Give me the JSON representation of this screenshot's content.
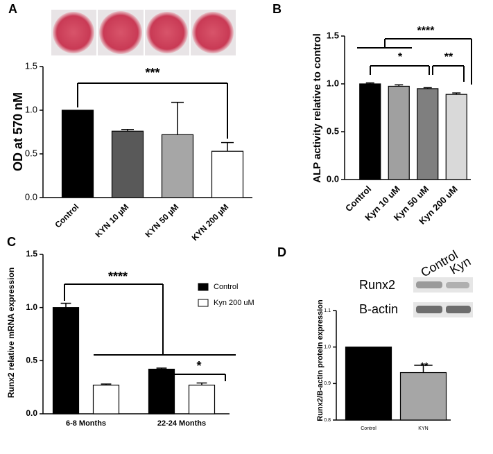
{
  "chart_data": [
    {
      "panel": "A",
      "type": "bar",
      "ylabel": "OD at 570 nM",
      "categories": [
        "Control",
        "KYN 10 µM",
        "KYN 50 µM",
        "KYN 200 µM"
      ],
      "values": [
        1.0,
        0.76,
        0.72,
        0.53
      ],
      "errors": [
        0,
        0.02,
        0.37,
        0.1
      ],
      "colors": [
        "#000000",
        "#595959",
        "#a6a6a6",
        "#ffffff"
      ],
      "ylim": [
        0,
        1.5
      ],
      "yticks": [
        {
          "value": 0,
          "label": "0.0"
        },
        {
          "value": 0.5,
          "label": "0.5"
        },
        {
          "value": 1,
          "label": "1.0"
        },
        {
          "value": 1.5,
          "label": "1.5"
        }
      ],
      "annotations": [
        "***"
      ]
    },
    {
      "panel": "B",
      "type": "bar",
      "ylabel": "ALP activity relative to control",
      "categories": [
        "Control",
        "Kyn 10 uM",
        "Kyn 50 uM",
        "Kyn 200 uM"
      ],
      "values": [
        1.0,
        0.975,
        0.95,
        0.89
      ],
      "errors": [
        0.01,
        0.015,
        0.01,
        0.015
      ],
      "colors": [
        "#000000",
        "#a0a0a0",
        "#7f7f7f",
        "#d9d9d9"
      ],
      "ylim": [
        0,
        1.5
      ],
      "yticks": [
        {
          "value": 0,
          "label": "0.0"
        },
        {
          "value": 0.5,
          "label": "0.5"
        },
        {
          "value": 1,
          "label": "1.0"
        },
        {
          "value": 1.5,
          "label": "1.5"
        }
      ],
      "annotations": [
        "****",
        "*",
        "**"
      ]
    },
    {
      "panel": "C",
      "type": "grouped_bar",
      "ylabel": "Runx2 relative mRNA expression",
      "categories": [
        "6-8 Months",
        "22-24 Months"
      ],
      "series": [
        {
          "name": "Control",
          "color": "#000000",
          "values": [
            1.0,
            0.42
          ],
          "errors": [
            0.04,
            0.01
          ]
        },
        {
          "name": "Kyn 200 uM",
          "color": "#ffffff",
          "values": [
            0.27,
            0.27
          ],
          "errors": [
            0.01,
            0.02
          ]
        }
      ],
      "ylim": [
        0,
        1.5
      ],
      "yticks": [
        {
          "value": 0,
          "label": "0.0"
        },
        {
          "value": 0.5,
          "label": "0.5"
        },
        {
          "value": 1,
          "label": "1.0"
        },
        {
          "value": 1.5,
          "label": "1.5"
        }
      ],
      "annotations": [
        "****",
        "*"
      ]
    },
    {
      "panel": "D",
      "type": "bar",
      "ylabel": "Runx2/B-actin protein expression",
      "categories": [
        "Control",
        "KYN"
      ],
      "values": [
        1.0,
        0.93
      ],
      "errors": [
        0,
        0.02
      ],
      "colors": [
        "#000000",
        "#a6a6a6"
      ],
      "ylim": [
        0.8,
        1.1
      ],
      "yticks": [
        0.8,
        0.9,
        {
          "value": 1,
          "label": "1.0"
        },
        1.1
      ],
      "annotations": [
        "**"
      ],
      "blot_labels": {
        "columns": [
          "Control",
          "Kyn"
        ],
        "rows": [
          "Runx2",
          "B-actin"
        ]
      }
    }
  ]
}
